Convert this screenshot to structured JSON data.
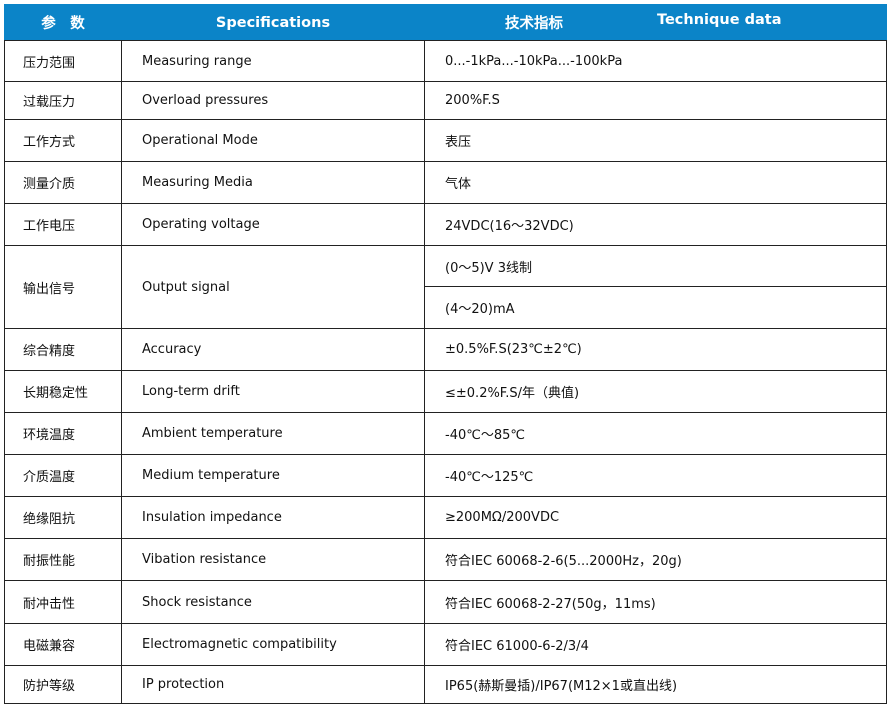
{
  "header": {
    "col1": "参　数",
    "col2": "Specifications",
    "col3_cn": "技术指标",
    "col3_en": "Technique data",
    "color": "#0b84c8"
  },
  "rows": [
    {
      "cn": "压力范围",
      "en": "Measuring range",
      "value": "0...-1kPa...-10kPa...-100kPa"
    },
    {
      "cn": "过载压力",
      "en": "Overload pressures",
      "value": "200%F.S"
    },
    {
      "cn": "工作方式",
      "en": "Operational Mode",
      "value": "表压"
    },
    {
      "cn": "测量介质",
      "en": "Measuring Media",
      "value": "气体"
    },
    {
      "cn": "工作电压",
      "en": "Operating voltage",
      "value": "24VDC(16～32VDC)"
    },
    {
      "cn": "输出信号",
      "en": "Output signal",
      "value": "(0～5)V  3线制",
      "value2": "(4～20)mA"
    },
    {
      "cn": "综合精度",
      "en": "Accuracy",
      "value": "±0.5%F.S(23℃±2℃)"
    },
    {
      "cn": "长期稳定性",
      "en": "Long-term drift",
      "value": "≤±0.2%F.S/年（典值)"
    },
    {
      "cn": "环境温度",
      "en": "Ambient temperature",
      "value": "-40℃～85℃"
    },
    {
      "cn": "介质温度",
      "en": "Medium temperature",
      "value": "-40℃～125℃"
    },
    {
      "cn": "绝缘阻抗",
      "en": "Insulation impedance",
      "value": "≥200MΩ/200VDC"
    },
    {
      "cn": "耐振性能",
      "en": "Vibation resistance",
      "value": "符合IEC 60068-2-6(5...2000Hz，20g)"
    },
    {
      "cn": "耐冲击性",
      "en": "Shock   resistance",
      "value": "符合IEC 60068-2-27(50g，11ms)"
    },
    {
      "cn": "电磁兼容",
      "en": "Electromagnetic compatibility",
      "value": "符合IEC 61000-6-2/3/4"
    },
    {
      "cn": "防护等级",
      "en": "IP protection",
      "value": "IP65(赫斯曼插)/IP67(M12×1或直出线)"
    }
  ]
}
